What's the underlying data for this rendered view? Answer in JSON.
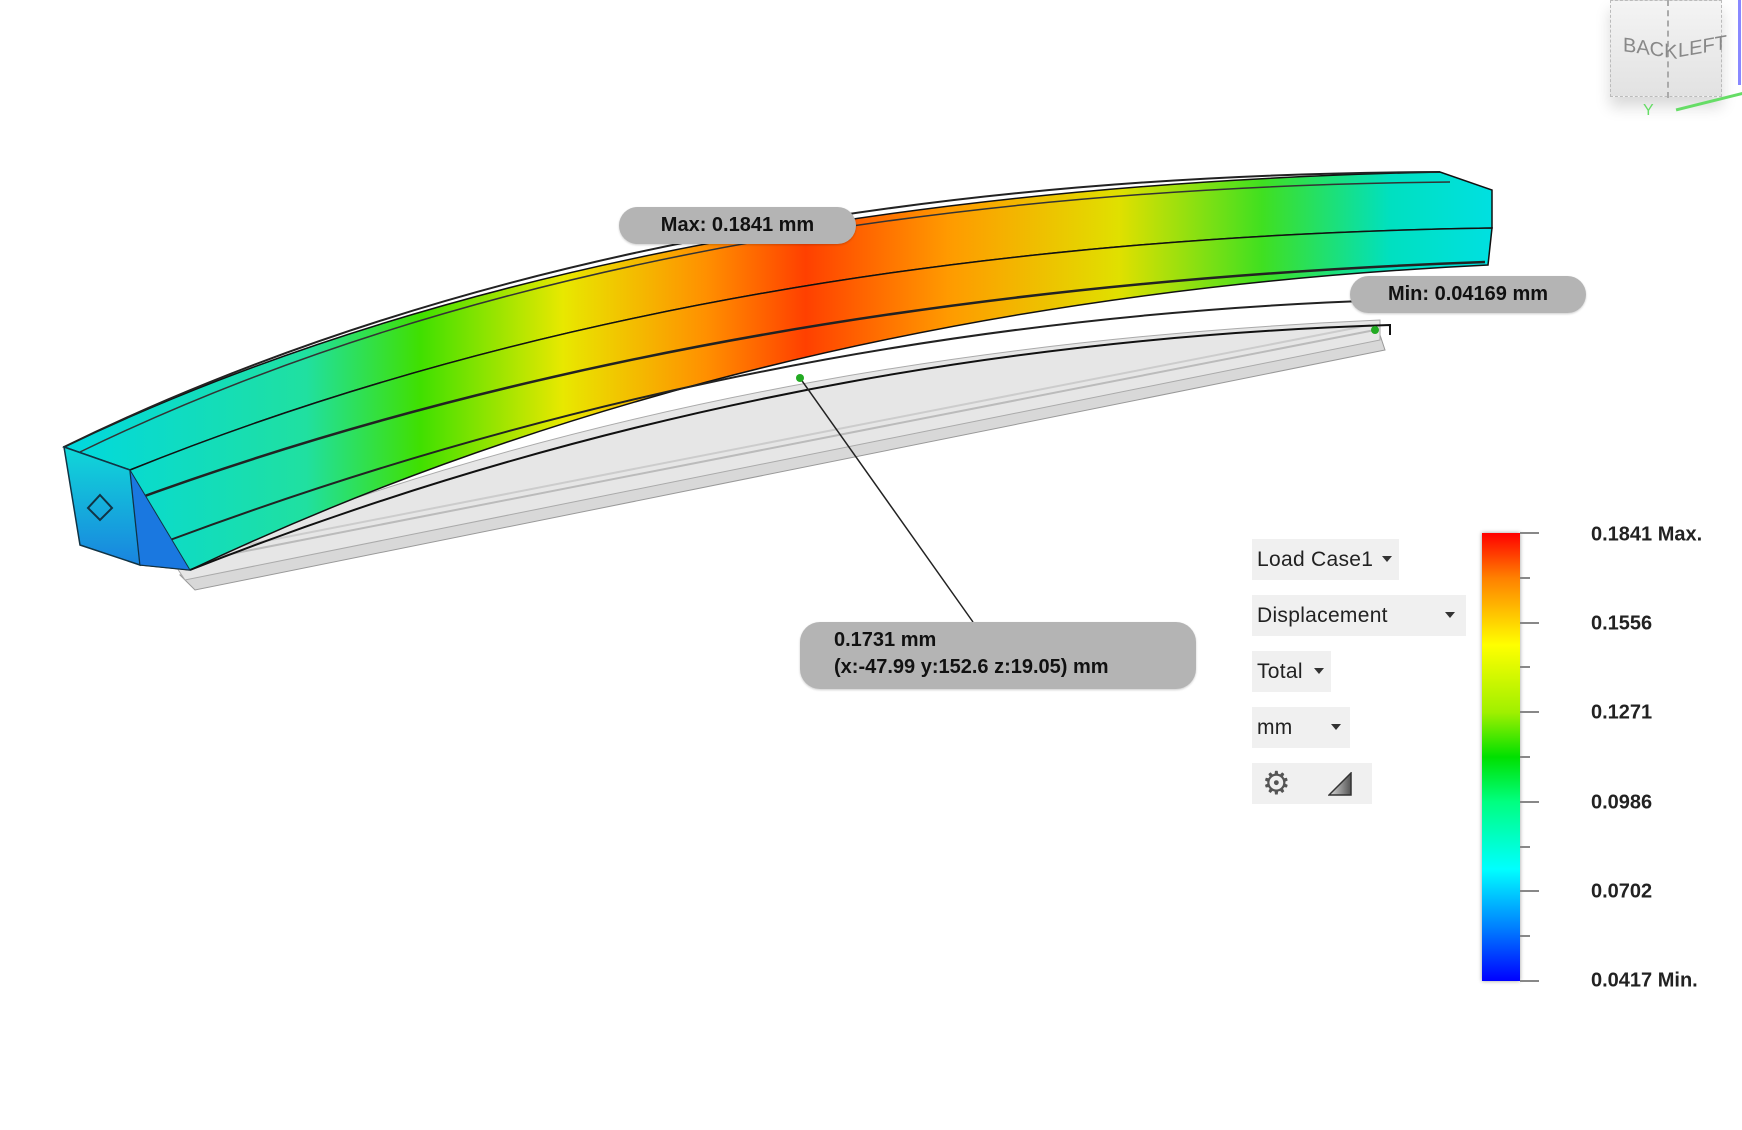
{
  "annotations": {
    "max_label": "Max: 0.1841 mm",
    "min_label": "Min: 0.04169 mm",
    "probe_value": "0.1731 mm",
    "probe_coords": "(x:-47.99 y:152.6 z:19.05) mm"
  },
  "controls": {
    "load_case": "Load Case1",
    "result_type": "Displacement",
    "component": "Total",
    "units": "mm",
    "settings_icon": "gear-icon",
    "legend_icon": "triangle-ramp-icon"
  },
  "legend": {
    "max": 0.1841,
    "min": 0.0417,
    "tick_labels": [
      "0.1841 Max.",
      "0.1556",
      "0.1271",
      "0.0986",
      "0.0702",
      "0.0417 Min."
    ],
    "colors": [
      "#ff0000",
      "#ff8000",
      "#ffff00",
      "#00e000",
      "#00ffff",
      "#0000ff"
    ]
  },
  "view_cube": {
    "faces": [
      "BACK",
      "LEFT"
    ],
    "axis_label": "Y"
  }
}
